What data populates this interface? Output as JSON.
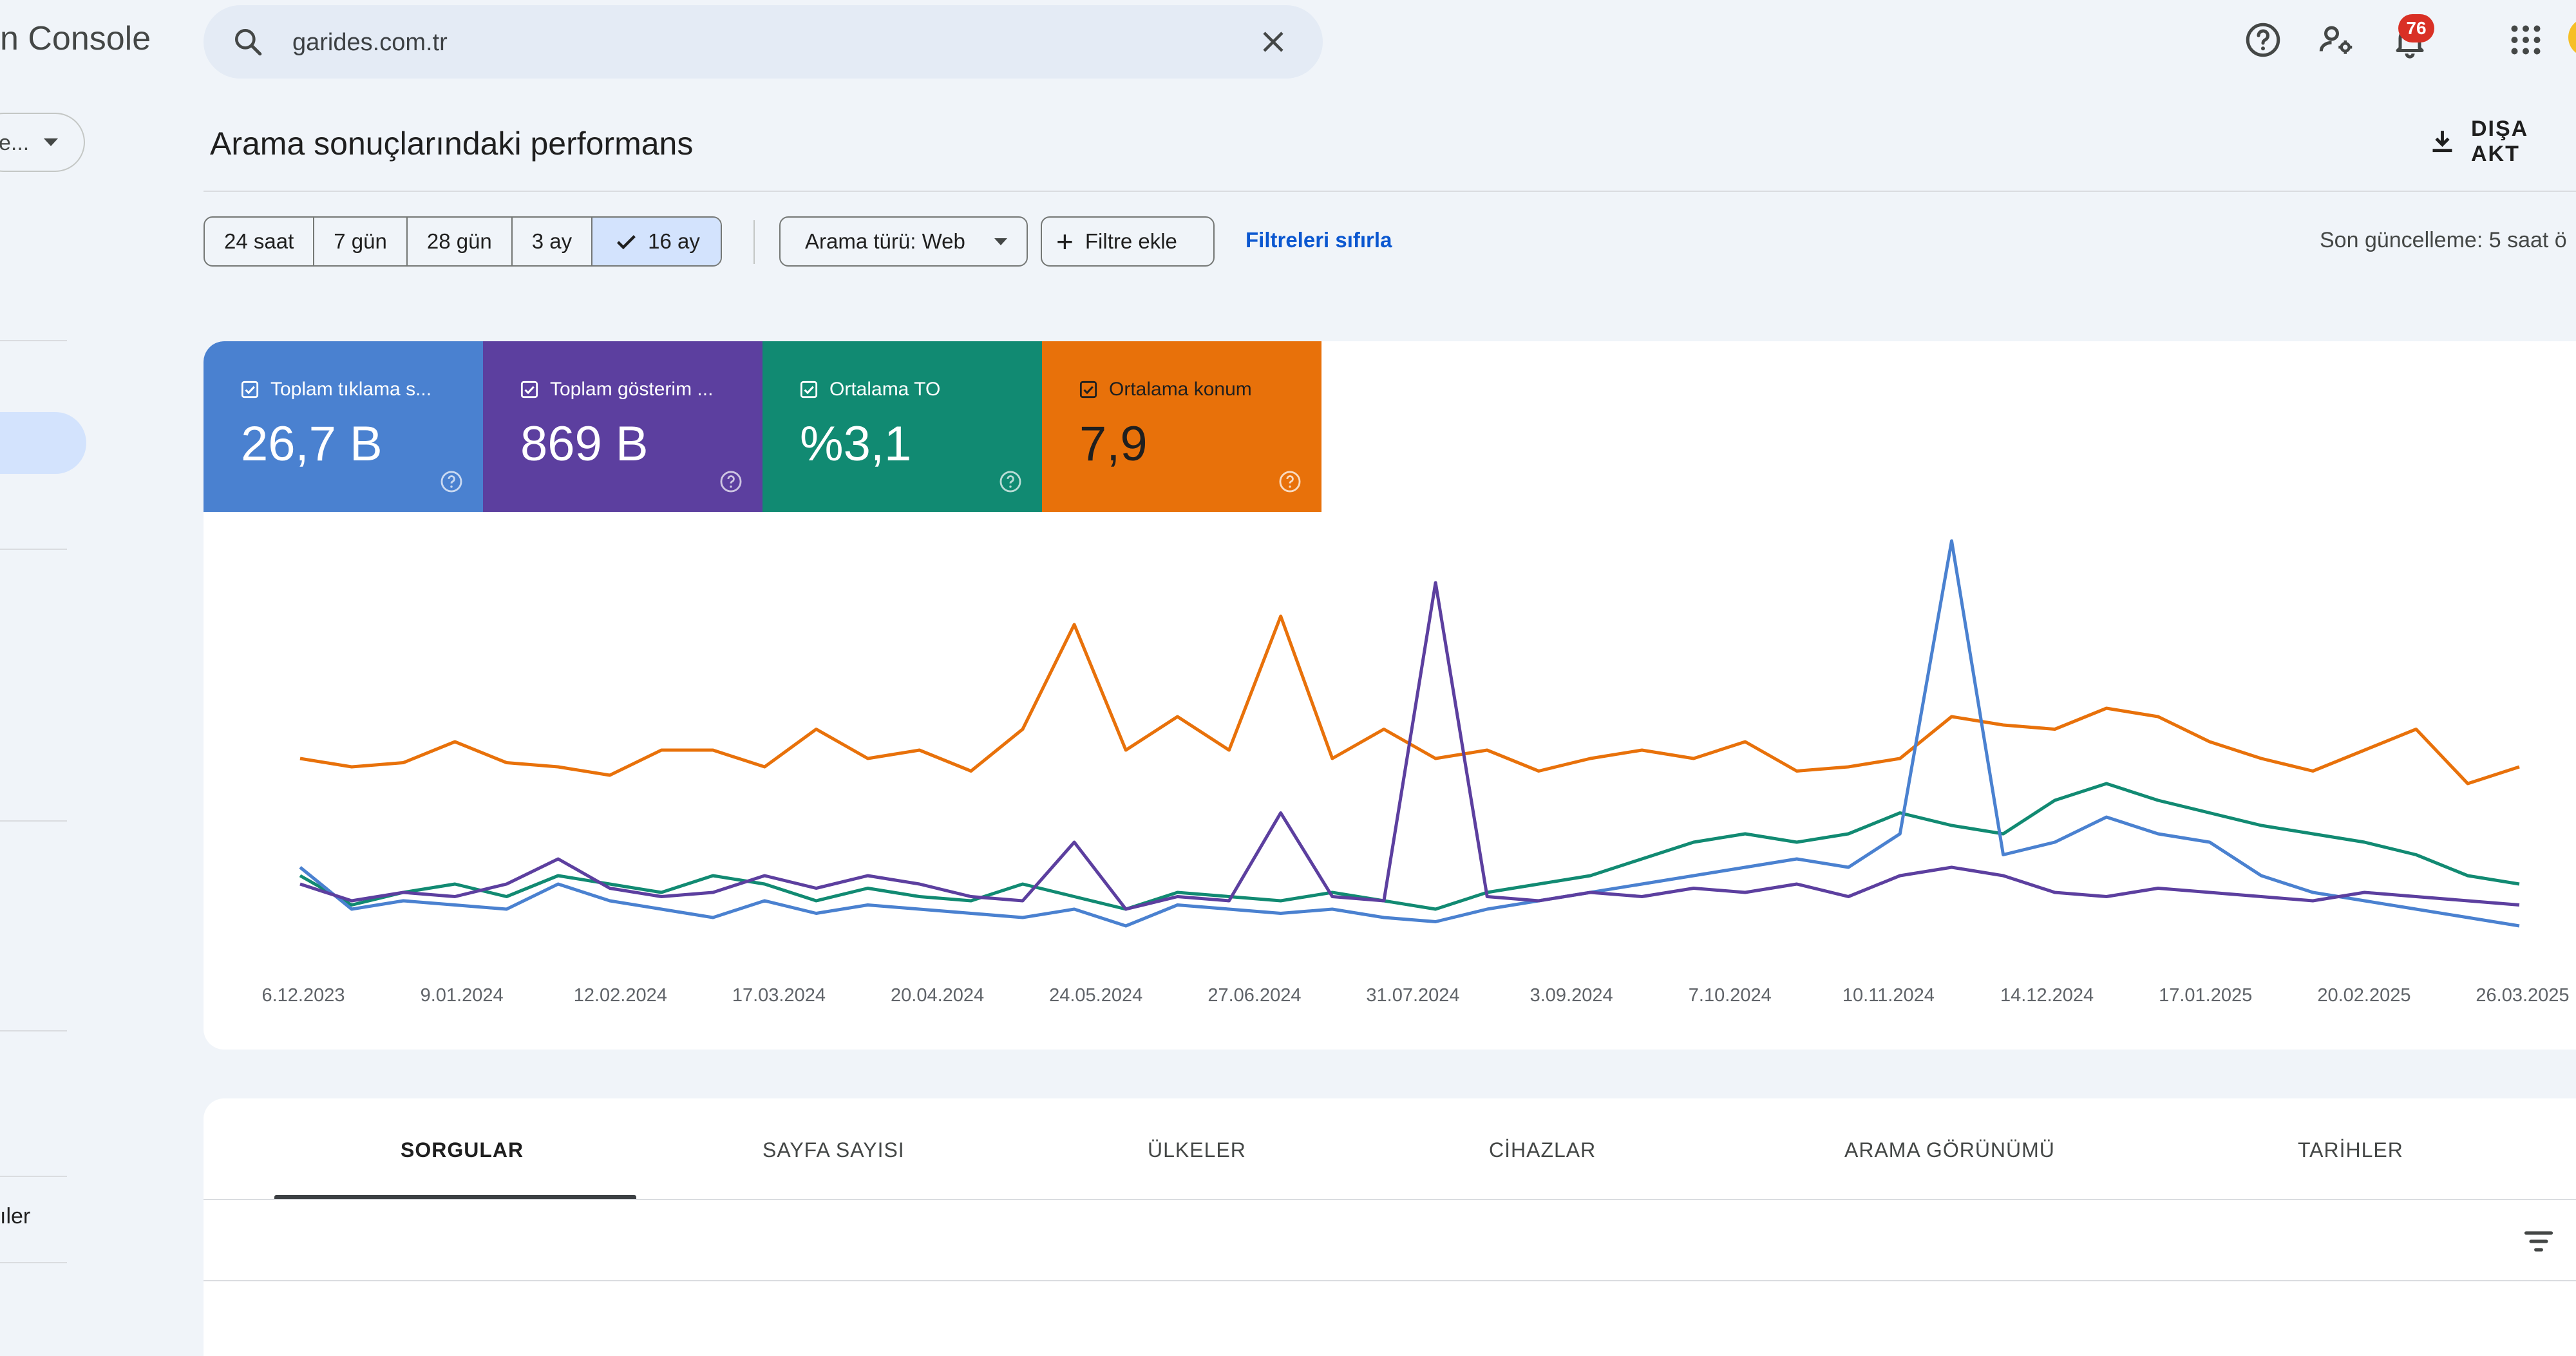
{
  "app": {
    "logo_text": "n Console"
  },
  "sidebar": {
    "property_value": "e...",
    "bottom_item_label": "ıler"
  },
  "search": {
    "value": "garides.com.tr"
  },
  "topbar": {
    "notifications_count": "76"
  },
  "header": {
    "title": "Arama sonuçlarındaki performans",
    "export_label": "DIŞA AKT"
  },
  "filters": {
    "date_ranges": [
      "24 saat",
      "7 gün",
      "28 gün",
      "3 ay",
      "16 ay"
    ],
    "selected_range": "16 ay",
    "search_type": "Arama türü: Web",
    "add_filter": "Filtre ekle",
    "reset": "Filtreleri sıfırla",
    "last_update": "Son güncelleme: 5 saat ö"
  },
  "metrics": [
    {
      "label": "Toplam tıklama s...",
      "value": "26,7 B",
      "color": "#4a81d0",
      "checked": true
    },
    {
      "label": "Toplam gösterim ...",
      "value": "869 B",
      "color": "#5c3f9f",
      "checked": true
    },
    {
      "label": "Ortalama TO",
      "value": "%3,1",
      "color": "#118a72",
      "checked": true
    },
    {
      "label": "Ortalama konum",
      "value": "7,9",
      "color": "#e8710a",
      "checked": true
    }
  ],
  "chart_data": {
    "type": "line",
    "x_labels": [
      "6.12.2023",
      "9.01.2024",
      "12.02.2024",
      "17.03.2024",
      "20.04.2024",
      "24.05.2024",
      "27.06.2024",
      "31.07.2024",
      "3.09.2024",
      "7.10.2024",
      "10.11.2024",
      "14.12.2024",
      "17.01.2025",
      "20.02.2025",
      "26.03.2025"
    ],
    "x_range": [
      "2023-12-06",
      "2025-03-26"
    ],
    "y_axes_visible": false,
    "grid": false,
    "series": [
      {
        "name": "Ortalama konum",
        "color": "#e8710a",
        "values": [
          0.48,
          0.46,
          0.47,
          0.52,
          0.47,
          0.46,
          0.44,
          0.5,
          0.5,
          0.46,
          0.55,
          0.48,
          0.5,
          0.45,
          0.55,
          0.8,
          0.5,
          0.58,
          0.5,
          0.82,
          0.48,
          0.55,
          0.48,
          0.5,
          0.45,
          0.48,
          0.5,
          0.48,
          0.52,
          0.45,
          0.46,
          0.48,
          0.58,
          0.56,
          0.55,
          0.6,
          0.58,
          0.52,
          0.48,
          0.45,
          0.5,
          0.55,
          0.42,
          0.46
        ]
      },
      {
        "name": "Ortalama TO",
        "color": "#118a72",
        "values": [
          0.2,
          0.13,
          0.16,
          0.18,
          0.15,
          0.2,
          0.18,
          0.16,
          0.2,
          0.18,
          0.14,
          0.17,
          0.15,
          0.14,
          0.18,
          0.15,
          0.12,
          0.16,
          0.15,
          0.14,
          0.16,
          0.14,
          0.12,
          0.16,
          0.18,
          0.2,
          0.24,
          0.28,
          0.3,
          0.28,
          0.3,
          0.35,
          0.32,
          0.3,
          0.38,
          0.42,
          0.38,
          0.35,
          0.32,
          0.3,
          0.28,
          0.25,
          0.2,
          0.18
        ]
      },
      {
        "name": "Toplam tıklama sayısı",
        "color": "#4a81d0",
        "values": [
          0.22,
          0.12,
          0.14,
          0.13,
          0.12,
          0.18,
          0.14,
          0.12,
          0.1,
          0.14,
          0.11,
          0.13,
          0.12,
          0.11,
          0.1,
          0.12,
          0.08,
          0.13,
          0.12,
          0.11,
          0.12,
          0.1,
          0.09,
          0.12,
          0.14,
          0.16,
          0.18,
          0.2,
          0.22,
          0.24,
          0.22,
          0.3,
          1.0,
          0.25,
          0.28,
          0.34,
          0.3,
          0.28,
          0.2,
          0.16,
          0.14,
          0.12,
          0.1,
          0.08
        ]
      },
      {
        "name": "Toplam gösterim",
        "color": "#5c3f9f",
        "values": [
          0.18,
          0.14,
          0.16,
          0.15,
          0.18,
          0.24,
          0.17,
          0.15,
          0.16,
          0.2,
          0.17,
          0.2,
          0.18,
          0.15,
          0.14,
          0.28,
          0.12,
          0.15,
          0.14,
          0.35,
          0.15,
          0.14,
          0.9,
          0.15,
          0.14,
          0.16,
          0.15,
          0.17,
          0.16,
          0.18,
          0.15,
          0.2,
          0.22,
          0.2,
          0.16,
          0.15,
          0.17,
          0.16,
          0.15,
          0.14,
          0.16,
          0.15,
          0.14,
          0.13
        ]
      }
    ]
  },
  "tables": {
    "tabs": [
      "SORGULAR",
      "SAYFA SAYISI",
      "ÜLKELER",
      "CİHAZLAR",
      "ARAMA GÖRÜNÜMÜ",
      "TARİHLER"
    ],
    "active_tab": "SORGULAR"
  }
}
